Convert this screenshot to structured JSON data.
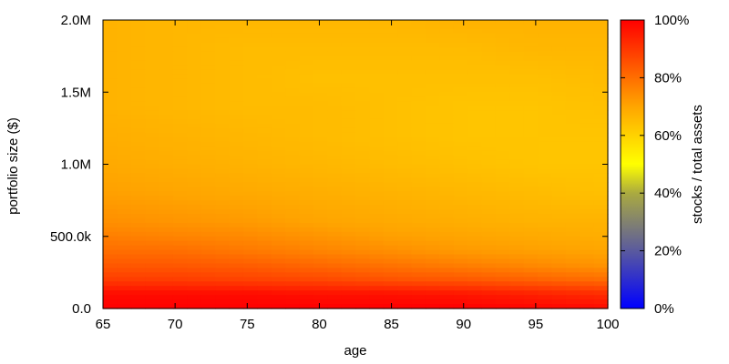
{
  "chart_data": {
    "type": "heatmap",
    "title": "",
    "xlabel": "age",
    "ylabel": "portfolio size ($)",
    "xlim": [
      65,
      100
    ],
    "ylim": [
      0,
      2000000
    ],
    "x_ticks": [
      65,
      70,
      75,
      80,
      85,
      90,
      95,
      100
    ],
    "x_tick_labels": [
      "65",
      "70",
      "75",
      "80",
      "85",
      "90",
      "95",
      "100"
    ],
    "y_ticks": [
      0,
      500000,
      1000000,
      1500000,
      2000000
    ],
    "y_tick_labels": [
      "0.0",
      "500.0k",
      "1.0M",
      "1.5M",
      "2.0M"
    ],
    "colorbar": {
      "label": "stocks / total assets",
      "range": [
        0,
        100
      ],
      "ticks": [
        0,
        20,
        40,
        60,
        80,
        100
      ],
      "tick_labels": [
        "0%",
        "20%",
        "40%",
        "60%",
        "80%",
        "100%"
      ],
      "stops": [
        {
          "value": 0,
          "color": "#0000ff"
        },
        {
          "value": 20,
          "color": "#5a5a9e"
        },
        {
          "value": 40,
          "color": "#aaaa40"
        },
        {
          "value": 50,
          "color": "#ffff00"
        },
        {
          "value": 70,
          "color": "#ffa500"
        },
        {
          "value": 100,
          "color": "#ff0000"
        }
      ]
    },
    "grid_ages": [
      65,
      70,
      75,
      80,
      85,
      90,
      95,
      100
    ],
    "grid_portfolio_sizes": [
      0,
      100000,
      200000,
      300000,
      400000,
      500000,
      600000,
      800000,
      1000000,
      1200000,
      1400000,
      1600000,
      1800000,
      2000000
    ],
    "stock_fraction_percent": [
      [
        100,
        100,
        100,
        100,
        100,
        100,
        99,
        98
      ],
      [
        98,
        98,
        98,
        97,
        97,
        96,
        94,
        92
      ],
      [
        89,
        89,
        88,
        87,
        85,
        84,
        82,
        80
      ],
      [
        84,
        84,
        83,
        81,
        79,
        77,
        75,
        73
      ],
      [
        80,
        80,
        78,
        76,
        74,
        72,
        71,
        70
      ],
      [
        77,
        76,
        75,
        73,
        71,
        70,
        69,
        68
      ],
      [
        74,
        73,
        72,
        70,
        69,
        68,
        67,
        67
      ],
      [
        71,
        70,
        69,
        68,
        67,
        66,
        65,
        64
      ],
      [
        69,
        68,
        67,
        66,
        65,
        64,
        63,
        63
      ],
      [
        68,
        67,
        66,
        65,
        64,
        63,
        63,
        63
      ],
      [
        67,
        66,
        65,
        65,
        64,
        63,
        63,
        64
      ],
      [
        67,
        66,
        65,
        64,
        64,
        64,
        64,
        65
      ],
      [
        67,
        66,
        65,
        65,
        65,
        65,
        66,
        66
      ],
      [
        67,
        66,
        66,
        66,
        66,
        67,
        67,
        67
      ]
    ]
  }
}
